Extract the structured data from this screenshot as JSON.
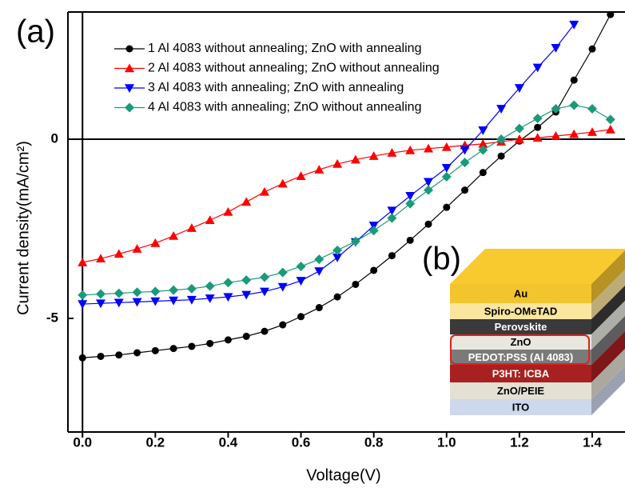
{
  "chart_data": {
    "type": "line",
    "panel_label": "(a)",
    "x_label": "Voltage(V)",
    "y_label": "Current density(mA/cm²)",
    "x": [
      0,
      0.05,
      0.1,
      0.15,
      0.2,
      0.25,
      0.3,
      0.35,
      0.4,
      0.45,
      0.5,
      0.55,
      0.6,
      0.65,
      0.7,
      0.75,
      0.8,
      0.85,
      0.9,
      0.95,
      1.0,
      1.05,
      1.1,
      1.15,
      1.2,
      1.25,
      1.3,
      1.35,
      1.4,
      1.45
    ],
    "series": [
      {
        "name": "1 Al 4083 without annealing; ZnO with annealing",
        "color": "#000000",
        "marker": "circle",
        "values": [
          -6.1,
          -6.06,
          -6.02,
          -5.96,
          -5.9,
          -5.84,
          -5.78,
          -5.7,
          -5.6,
          -5.5,
          -5.36,
          -5.18,
          -4.95,
          -4.7,
          -4.4,
          -4.05,
          -3.66,
          -3.25,
          -2.82,
          -2.37,
          -1.9,
          -1.42,
          -0.93,
          -0.47,
          -0.05,
          0.33,
          0.76,
          1.65,
          2.52,
          3.48
        ]
      },
      {
        "name": "2 Al 4083 without annealing; ZnO without annealing",
        "color": "#ff0000",
        "marker": "triangle-up",
        "values": [
          -3.44,
          -3.33,
          -3.2,
          -3.06,
          -2.9,
          -2.7,
          -2.48,
          -2.26,
          -2.03,
          -1.75,
          -1.47,
          -1.24,
          -1.03,
          -0.85,
          -0.69,
          -0.57,
          -0.47,
          -0.38,
          -0.31,
          -0.26,
          -0.22,
          -0.17,
          -0.13,
          -0.07,
          0.0,
          0.04,
          0.09,
          0.14,
          0.2,
          0.27
        ]
      },
      {
        "name": "3 Al 4083 with annealing; ZnO with annealing",
        "color": "#0000ff",
        "marker": "triangle-down",
        "values": [
          -4.6,
          -4.58,
          -4.56,
          -4.54,
          -4.52,
          -4.5,
          -4.48,
          -4.44,
          -4.4,
          -4.34,
          -4.25,
          -4.12,
          -3.95,
          -3.68,
          -3.3,
          -2.87,
          -2.41,
          -1.99,
          -1.58,
          -1.19,
          -0.8,
          -0.3,
          0.25,
          0.85,
          1.43,
          2.0,
          2.55,
          3.2,
          null,
          null
        ]
      },
      {
        "name": "4 Al 4083 with annealing; ZnO without annealing",
        "color": "#1a9a7a",
        "marker": "diamond",
        "values": [
          -4.35,
          -4.32,
          -4.3,
          -4.27,
          -4.25,
          -4.21,
          -4.17,
          -4.1,
          -4.0,
          -3.93,
          -3.85,
          -3.72,
          -3.55,
          -3.35,
          -3.1,
          -2.85,
          -2.55,
          -2.2,
          -1.8,
          -1.42,
          -1.05,
          -0.65,
          -0.3,
          0.0,
          0.3,
          0.58,
          0.85,
          0.95,
          0.85,
          0.55
        ]
      }
    ],
    "xlim": [
      -0.04,
      1.49
    ],
    "ylim": [
      -8.17,
      3.55
    ],
    "xticks": [
      {
        "value": 0,
        "label": "0.0"
      },
      0.2,
      0.4,
      0.6,
      0.8,
      {
        "value": 1,
        "label": "1.0"
      },
      1.2,
      1.4
    ],
    "yticks": [
      -5,
      0
    ],
    "inset": {
      "panel_label": "(b)",
      "layers": [
        {
          "name": "Au",
          "color": "#f2c42e"
        },
        {
          "name": "Spiro-OMeTAD",
          "color": "#fbe6a0"
        },
        {
          "name": "Perovskite",
          "color": "#3a3a3a"
        },
        {
          "name": "ZnO",
          "color": "#e8e8e0"
        },
        {
          "name": "PEDOT:PSS (Al 4083)",
          "color": "#7a7a7a"
        },
        {
          "name": "P3HT: ICBA",
          "color": "#a82020"
        },
        {
          "name": "ZnO/PEIE",
          "color": "#e4e0d4"
        },
        {
          "name": "ITO",
          "color": "#cdd8ec"
        }
      ]
    }
  }
}
